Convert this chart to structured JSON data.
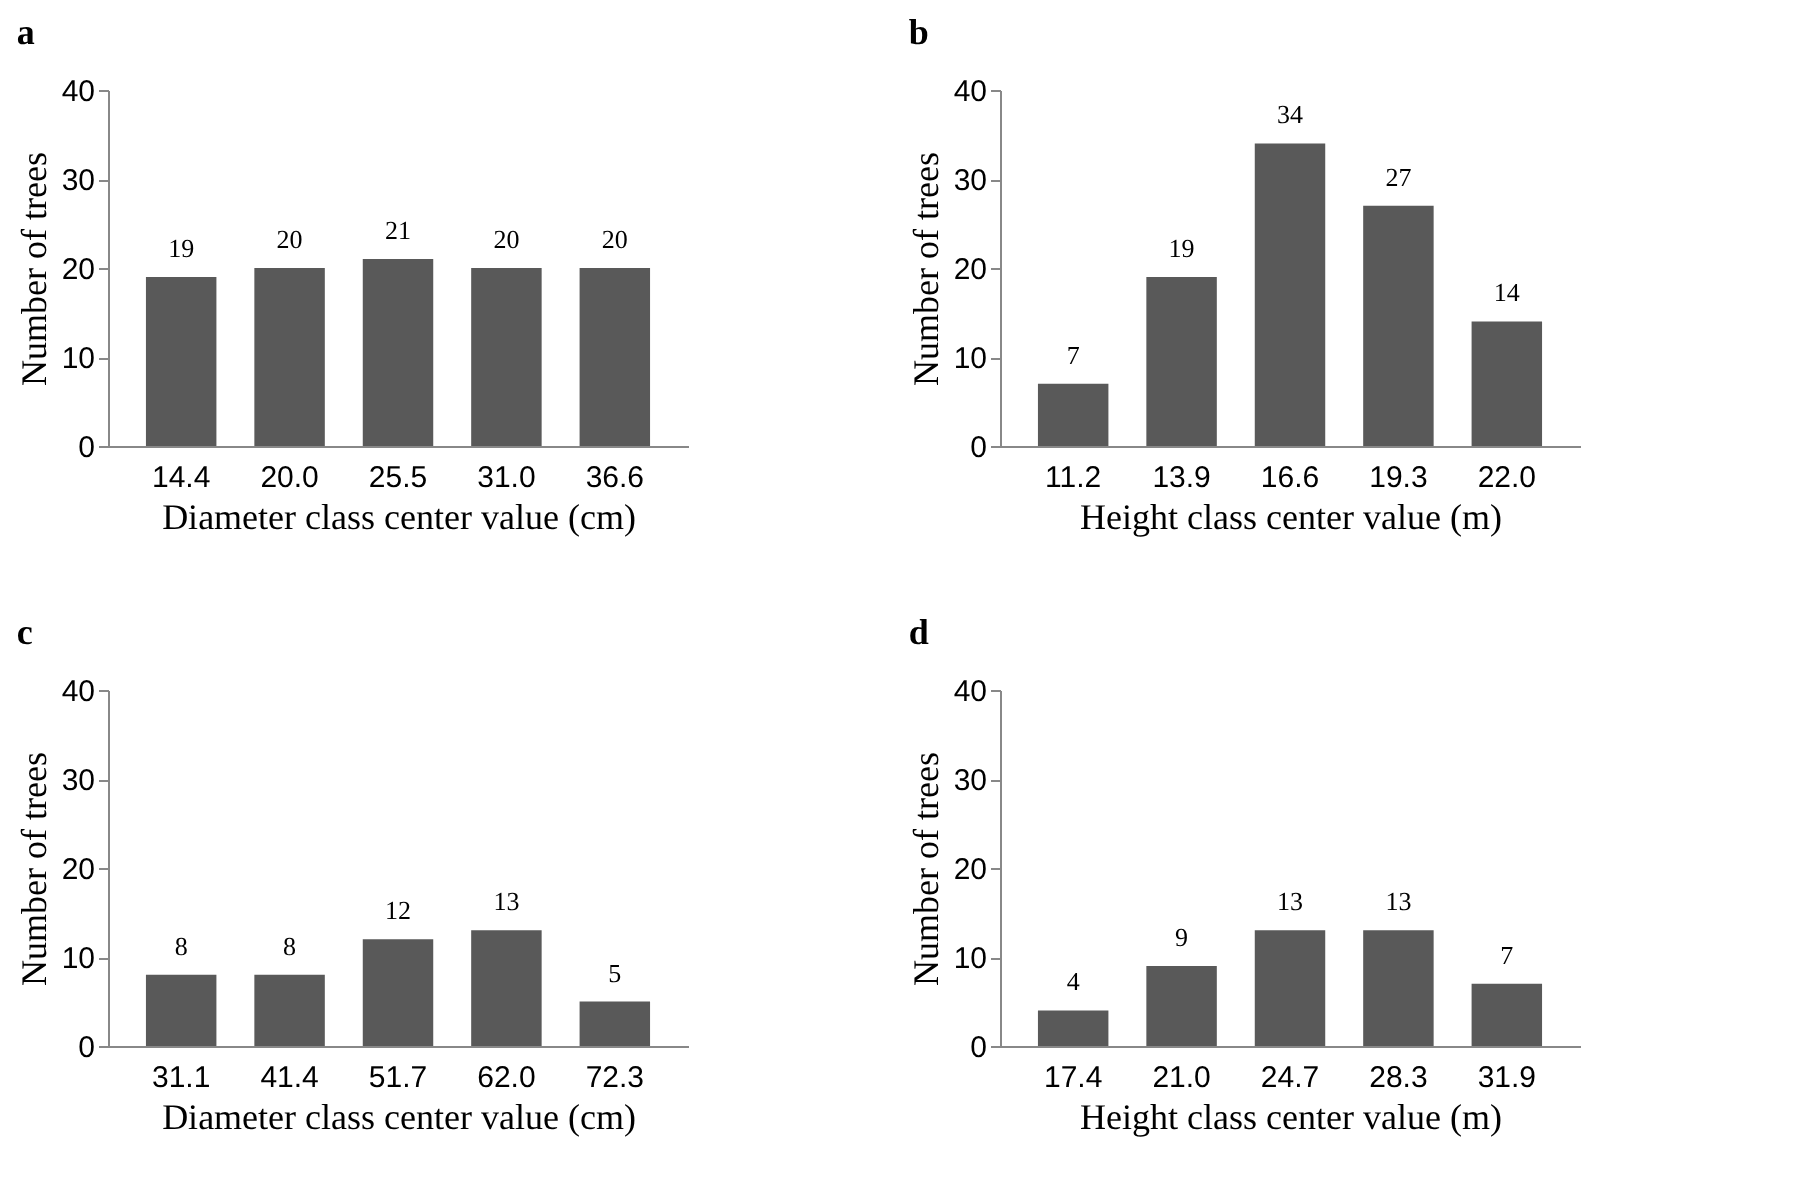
{
  "chart_data": [
    {
      "type": "bar",
      "title": "a",
      "xlabel": "Diameter class center value (cm)",
      "ylabel": "Number of trees",
      "categories": [
        "14.4",
        "20.0",
        "25.5",
        "31.0",
        "36.6"
      ],
      "values": [
        19,
        20,
        21,
        20,
        20
      ],
      "color": "#595959",
      "ylim": [
        0,
        40
      ],
      "yticks": [
        0,
        10,
        20,
        30,
        40
      ],
      "data_labels": true
    },
    {
      "type": "bar",
      "title": "b",
      "xlabel": "Height class center value (m)",
      "ylabel": "Number of trees",
      "categories": [
        "11.2",
        "13.9",
        "16.6",
        "19.3",
        "22.0"
      ],
      "values": [
        7,
        19,
        34,
        27,
        14
      ],
      "color": "#595959",
      "ylim": [
        0,
        40
      ],
      "yticks": [
        0,
        10,
        20,
        30,
        40
      ],
      "data_labels": true
    },
    {
      "type": "bar",
      "title": "c",
      "xlabel": "Diameter class center value (cm)",
      "ylabel": "Number of trees",
      "categories": [
        "31.1",
        "41.4",
        "51.7",
        "62.0",
        "72.3"
      ],
      "values": [
        8,
        8,
        12,
        13,
        5
      ],
      "color": "#595959",
      "ylim": [
        0,
        40
      ],
      "yticks": [
        0,
        10,
        20,
        30,
        40
      ],
      "data_labels": true
    },
    {
      "type": "bar",
      "title": "d",
      "xlabel": "Height class center value (m)",
      "ylabel": "Number of trees",
      "categories": [
        "17.4",
        "21.0",
        "24.7",
        "28.3",
        "31.9"
      ],
      "values": [
        4,
        9,
        13,
        13,
        7
      ],
      "color": "#595959",
      "ylim": [
        0,
        40
      ],
      "yticks": [
        0,
        10,
        20,
        30,
        40
      ],
      "data_labels": true
    }
  ]
}
